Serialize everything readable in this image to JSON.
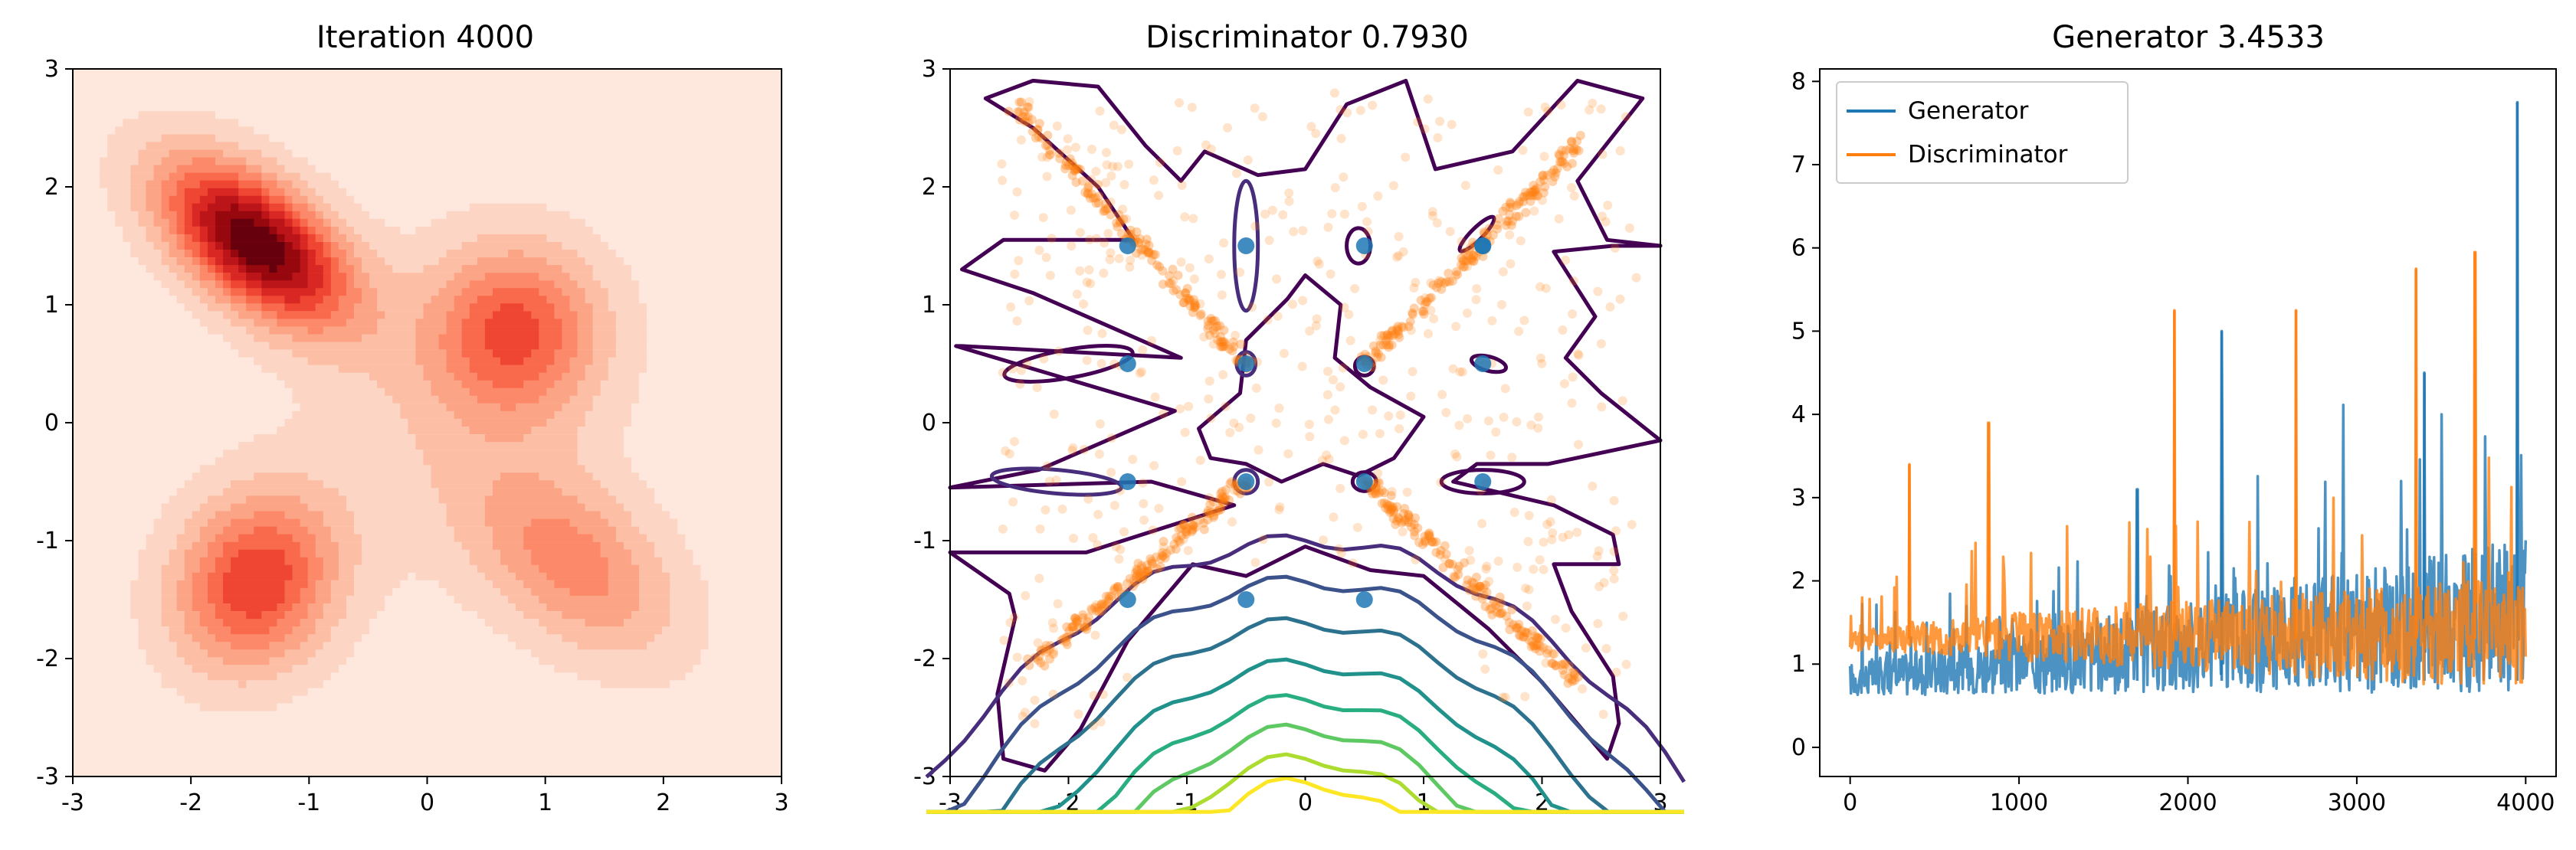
{
  "figure": {
    "panels": 3
  },
  "chart_data": [
    {
      "type": "heatmap",
      "title": "Iteration 4000",
      "xlim": [
        -3,
        3
      ],
      "ylim": [
        -3,
        3
      ],
      "xticks": [
        "-3",
        "-2",
        "-1",
        "0",
        "1",
        "2",
        "3"
      ],
      "yticks": [
        "3",
        "2",
        "1",
        "0",
        "-1",
        "-2",
        "-3"
      ],
      "colormap": "Reds",
      "background_color": "#fee8dd",
      "contour_levels": 10,
      "modes": [
        {
          "x": -1.45,
          "y": 1.52,
          "sx": 0.55,
          "sy": 0.48,
          "rho": -0.55,
          "w": 1.0
        },
        {
          "x": 0.75,
          "y": 0.78,
          "sx": 0.5,
          "sy": 0.5,
          "rho": 0.0,
          "w": 0.52
        },
        {
          "x": -1.45,
          "y": -1.35,
          "sx": 0.48,
          "sy": 0.52,
          "rho": 0.15,
          "w": 0.62
        },
        {
          "x": 1.25,
          "y": -1.2,
          "sx": 0.6,
          "sy": 0.55,
          "rho": -0.45,
          "w": 0.38
        },
        {
          "x": 0.2,
          "y": 0.05,
          "sx": 0.9,
          "sy": 0.9,
          "rho": 0.0,
          "w": 0.12
        }
      ]
    },
    {
      "type": "scatter",
      "title": "Discriminator 0.7930",
      "xlim": [
        -3,
        3
      ],
      "ylim": [
        -3,
        3
      ],
      "xticks": [
        "-3",
        "-2",
        "-1",
        "0",
        "1",
        "2",
        "3"
      ],
      "yticks": [
        "3",
        "2",
        "1",
        "0",
        "-1",
        "-2",
        "-3"
      ],
      "real_points": {
        "color": "#1f77b4",
        "x": [
          -1.5,
          -0.5,
          0.5,
          1.5,
          -1.5,
          -0.5,
          0.5,
          1.5,
          -1.5,
          -0.5,
          0.5,
          1.5,
          -1.5,
          -0.5,
          0.5,
          1.5
        ],
        "y": [
          1.5,
          1.5,
          1.5,
          1.5,
          0.5,
          0.5,
          0.5,
          0.5,
          -0.5,
          -0.5,
          -0.5,
          -0.5,
          -1.5,
          -1.5,
          -1.5,
          1.5
        ]
      },
      "generated_points": {
        "color": "#ff7f0e",
        "arms": [
          {
            "from": [
              -0.5,
              0.5
            ],
            "to": [
              -2.45,
              2.7
            ]
          },
          {
            "from": [
              0.5,
              0.5
            ],
            "to": [
              2.35,
              2.4
            ]
          },
          {
            "from": [
              -0.5,
              -0.5
            ],
            "to": [
              -2.3,
              -2.05
            ]
          },
          {
            "from": [
              0.5,
              -0.5
            ],
            "to": [
              2.3,
              -2.2
            ]
          }
        ],
        "scatter_extent": [
          -2.6,
          2.8
        ]
      },
      "contour_colormap": [
        "#440154",
        "#472d7b",
        "#3b528b",
        "#2c728e",
        "#21918c",
        "#28ae80",
        "#5ec962",
        "#addc30",
        "#fde725"
      ],
      "contours": {
        "outer_loops": 1,
        "bottom_levels": [
          -1.0,
          -1.35,
          -1.7,
          -2.05,
          -2.35,
          -2.6,
          -2.85,
          -3.05
        ]
      }
    },
    {
      "type": "line",
      "title": "Generator 3.4533",
      "xlim": [
        -180,
        4180
      ],
      "ylim": [
        -0.35,
        8.15
      ],
      "xticks": [
        "0",
        "1000",
        "2000",
        "3000",
        "4000"
      ],
      "yticks": [
        "0",
        "1",
        "2",
        "3",
        "4",
        "5",
        "6",
        "7",
        "8"
      ],
      "legend_position": "top-left",
      "series": [
        {
          "name": "Generator",
          "color": "#1f77b4",
          "x_range": [
            0,
            4000
          ],
          "baseline_start": 0.8,
          "baseline_end": 1.5,
          "peaks": [
            [
              1700,
              3.1
            ],
            [
              2200,
              5.0
            ],
            [
              3400,
              4.5
            ],
            [
              3950,
              7.75
            ]
          ]
        },
        {
          "name": "Discriminator",
          "color": "#ff7f0e",
          "x_range": [
            0,
            4000
          ],
          "baseline_start": 1.3,
          "baseline_end": 1.3,
          "peaks": [
            [
              350,
              3.4
            ],
            [
              820,
              3.9
            ],
            [
              1920,
              5.25
            ],
            [
              2640,
              5.25
            ],
            [
              3350,
              5.75
            ],
            [
              3700,
              5.95
            ]
          ]
        }
      ]
    }
  ]
}
